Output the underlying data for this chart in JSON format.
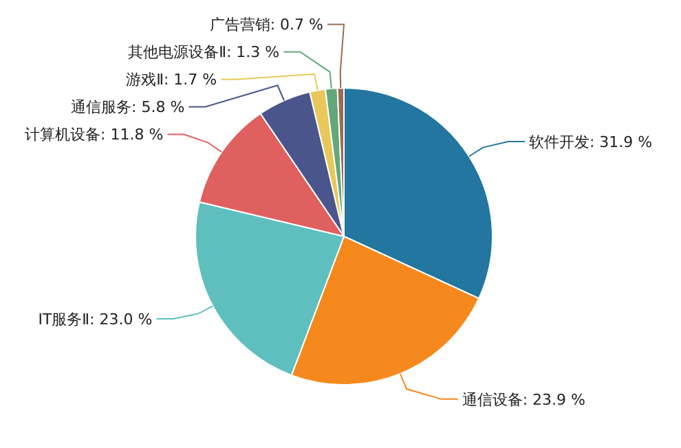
{
  "chart_data": {
    "type": "pie",
    "categories": [
      "软件开发",
      "通信设备",
      "IT服务Ⅱ",
      "计算机设备",
      "通信服务",
      "游戏Ⅱ",
      "其他电源设备Ⅱ",
      "广告营销"
    ],
    "values": [
      31.9,
      23.9,
      23.0,
      11.8,
      5.8,
      1.7,
      1.3,
      0.7
    ],
    "value_labels": [
      "31.9 %",
      "23.9 %",
      "23.0 %",
      "11.8 %",
      "5.8 %",
      "1.7 %",
      "1.3 %",
      "0.7 %"
    ],
    "colors": [
      "#22769f",
      "#f5891e",
      "#5fbfbf",
      "#e06060",
      "#4a558c",
      "#e8c85a",
      "#62a87a",
      "#9b6a50"
    ]
  }
}
